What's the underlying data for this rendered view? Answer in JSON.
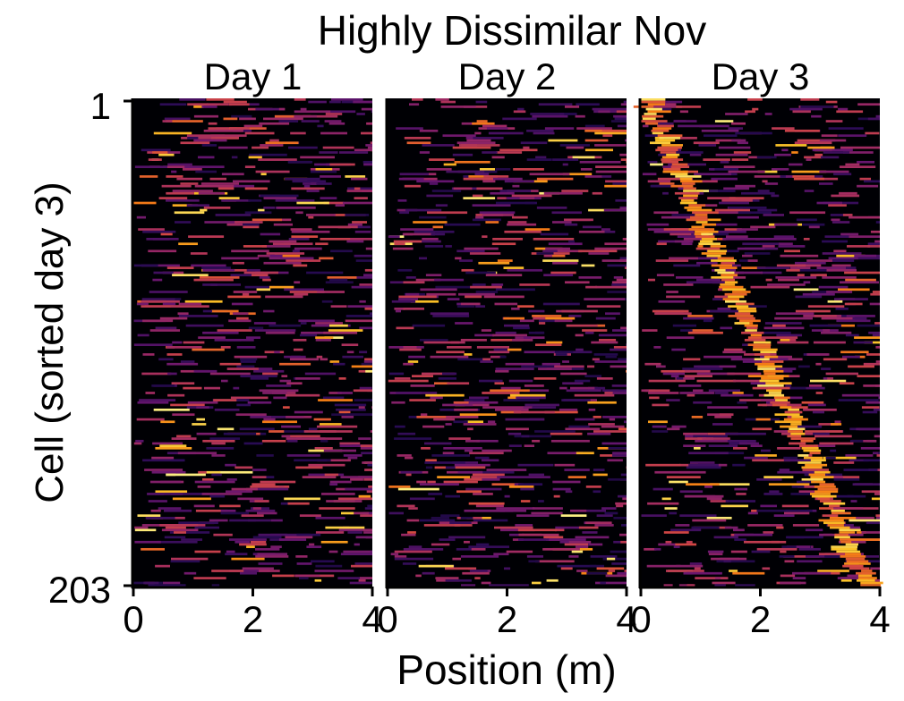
{
  "chart_data": {
    "type": "heatmap",
    "title": "Highly Dissimilar Nov",
    "xlabel": "Position (m)",
    "ylabel": "Cell (sorted day 3)",
    "colormap": "inferno",
    "colors": {
      "background": "#000004",
      "low": "#2d0c57",
      "mid": "#c33e5a",
      "high": "#fcffa4"
    },
    "y_tick_labels": [
      "1",
      "203"
    ],
    "n_cells": 203,
    "xlim": [
      0,
      4
    ],
    "x_ticks": [
      0,
      2,
      4
    ],
    "x_tick_labels": [
      "0",
      "2",
      "4"
    ],
    "panels": [
      {
        "label": "Day 1",
        "pattern": "scattered"
      },
      {
        "label": "Day 2",
        "pattern": "scattered"
      },
      {
        "label": "Day 3",
        "pattern": "diagonal",
        "diagonal_start_m": 0.1,
        "diagonal_end_m": 3.8
      }
    ]
  }
}
